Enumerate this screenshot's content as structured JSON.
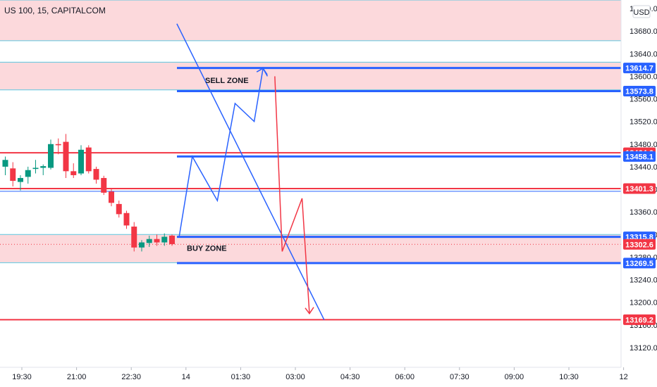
{
  "header": {
    "symbol": "US 100, 15, CAPITALCOM",
    "currency": "USD"
  },
  "chart_data": {
    "type": "candlestick",
    "ylim": [
      13085,
      13735
    ],
    "y_ticks": [
      "13720.0",
      "13680.0",
      "13640.0",
      "13600.0",
      "13560.0",
      "13520.0",
      "13480.0",
      "13440.0",
      "13400.0",
      "13360.0",
      "13320.0",
      "13280.0",
      "13240.0",
      "13200.0",
      "13160.0",
      "13120.0"
    ],
    "x_ticks": [
      "19:30",
      "21:00",
      "22:30",
      "14",
      "01:30",
      "03:00",
      "04:30",
      "06:00",
      "07:30",
      "09:00",
      "10:30",
      "12"
    ],
    "candles": [
      {
        "o": 13440,
        "h": 13458,
        "l": 13425,
        "c": 13452
      },
      {
        "o": 13437,
        "h": 13448,
        "l": 13405,
        "c": 13415
      },
      {
        "o": 13413,
        "h": 13425,
        "l": 13398,
        "c": 13420
      },
      {
        "o": 13422,
        "h": 13440,
        "l": 13410,
        "c": 13434
      },
      {
        "o": 13436,
        "h": 13452,
        "l": 13428,
        "c": 13438
      },
      {
        "o": 13438,
        "h": 13444,
        "l": 13425,
        "c": 13441
      },
      {
        "o": 13438,
        "h": 13488,
        "l": 13435,
        "c": 13480
      },
      {
        "o": 13480,
        "h": 13490,
        "l": 13462,
        "c": 13478
      },
      {
        "o": 13484,
        "h": 13498,
        "l": 13420,
        "c": 13432
      },
      {
        "o": 13432,
        "h": 13446,
        "l": 13420,
        "c": 13425
      },
      {
        "o": 13428,
        "h": 13478,
        "l": 13425,
        "c": 13470
      },
      {
        "o": 13474,
        "h": 13478,
        "l": 13428,
        "c": 13432
      },
      {
        "o": 13436,
        "h": 13440,
        "l": 13410,
        "c": 13417
      },
      {
        "o": 13420,
        "h": 13424,
        "l": 13390,
        "c": 13394
      },
      {
        "o": 13396,
        "h": 13402,
        "l": 13370,
        "c": 13376
      },
      {
        "o": 13374,
        "h": 13380,
        "l": 13350,
        "c": 13356
      },
      {
        "o": 13358,
        "h": 13362,
        "l": 13330,
        "c": 13336
      },
      {
        "o": 13334,
        "h": 13342,
        "l": 13290,
        "c": 13297
      },
      {
        "o": 13297,
        "h": 13310,
        "l": 13290,
        "c": 13306
      },
      {
        "o": 13305,
        "h": 13318,
        "l": 13298,
        "c": 13312
      },
      {
        "o": 13312,
        "h": 13320,
        "l": 13300,
        "c": 13306
      },
      {
        "o": 13306,
        "h": 13322,
        "l": 13300,
        "c": 13316
      },
      {
        "o": 13318,
        "h": 13320,
        "l": 13300,
        "c": 13303
      }
    ],
    "zones": [
      {
        "name": "top",
        "from": 13663,
        "to": 13735,
        "color": "#fcd9dc"
      },
      {
        "name": "sell",
        "from": 13576,
        "to": 13625,
        "color": "#fcd9dc"
      },
      {
        "name": "buy",
        "from": 13270,
        "to": 13320,
        "color": "#fcd9dc"
      }
    ],
    "zone_labels": {
      "sell": "SELL ZONE",
      "buy": "BUY ZONE"
    },
    "h_lines": [
      {
        "y": 13614.7,
        "color": "#2962ff",
        "width": 3,
        "start": "14"
      },
      {
        "y": 13573.8,
        "color": "#2962ff",
        "width": 3,
        "start": "14"
      },
      {
        "y": 13464.6,
        "color": "#f23645",
        "width": 2,
        "start": "left"
      },
      {
        "y": 13458.1,
        "color": "#2962ff",
        "width": 3,
        "start": "14"
      },
      {
        "y": 13401.3,
        "color": "#f23645",
        "width": 2,
        "start": "left"
      },
      {
        "y": 13396.5,
        "color": "#2962ff",
        "width": 1,
        "start": "left"
      },
      {
        "y": 13315.8,
        "color": "#2962ff",
        "width": 3,
        "start": "14"
      },
      {
        "y": 13269.5,
        "color": "#2962ff",
        "width": 3,
        "start": "14"
      },
      {
        "y": 13169.2,
        "color": "#f23645",
        "width": 2,
        "start": "left"
      }
    ],
    "price_labels": [
      {
        "value": "13614.7",
        "color": "#2962ff"
      },
      {
        "value": "13573.8",
        "color": "#2962ff"
      },
      {
        "value": "13464.6",
        "color": "#f23645"
      },
      {
        "value": "13458.1",
        "color": "#2962ff"
      },
      {
        "value": "13401.3",
        "color": "#f23645"
      },
      {
        "value": "13315.8",
        "color": "#2962ff"
      },
      {
        "value": "13302.6",
        "color": "#f23645"
      },
      {
        "value": "13269.5",
        "color": "#2962ff"
      },
      {
        "value": "13169.2",
        "color": "#f23645"
      }
    ],
    "trend_line": {
      "from": {
        "t": -0.3,
        "p": 13693
      },
      "to": {
        "t": 19.7,
        "p": 13169
      }
    },
    "projection_up": [
      {
        "t": 0,
        "p": 13315
      },
      {
        "t": 1.8,
        "p": 13458
      },
      {
        "t": 5.2,
        "p": 13380
      },
      {
        "t": 7.6,
        "p": 13552
      },
      {
        "t": 10.2,
        "p": 13520
      },
      {
        "t": 11.4,
        "p": 13614
      },
      {
        "t": 12.0,
        "p": 13600
      }
    ],
    "projection_down": [
      {
        "t": 13.0,
        "p": 13600
      },
      {
        "t": 14.0,
        "p": 13290
      },
      {
        "t": 16.7,
        "p": 13384
      },
      {
        "t": 17.7,
        "p": 13180
      }
    ],
    "colors": {
      "up": "#089981",
      "down": "#f23645",
      "blue": "#2962ff",
      "red": "#f23645"
    }
  }
}
